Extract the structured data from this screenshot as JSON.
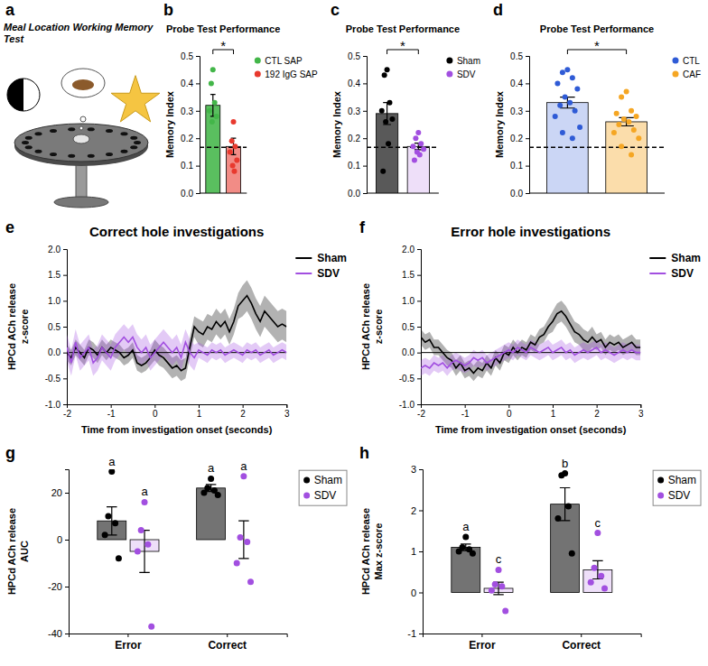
{
  "chart_data": [
    {
      "type": "illustration",
      "panel": "a",
      "title": "Meal Location Working Memory Test"
    },
    {
      "type": "bar",
      "panel": "b",
      "title": "Probe Test Performance",
      "y_label": "Memory Index",
      "ylim": [
        0,
        0.5
      ],
      "yticks": [
        {
          "value": 0,
          "label": "0.0"
        },
        0.1,
        0.2,
        0.3,
        0.4,
        0.5
      ],
      "reference_line": 0.167,
      "annotation": "*",
      "legend": "right",
      "series": [
        {
          "name": "CTL SAP",
          "color": "#43b649",
          "values": [
            0.32
          ],
          "error": [
            0.04
          ],
          "points": [
            0.45,
            0.4,
            0.33,
            0.3,
            0.28,
            0.26
          ]
        },
        {
          "name": "192 IgG SAP",
          "color": "#e8392e",
          "values": [
            0.17
          ],
          "error": [
            0.03
          ],
          "points": [
            0.26,
            0.19,
            0.17,
            0.15,
            0.12,
            0.1,
            0.08
          ]
        }
      ]
    },
    {
      "type": "bar",
      "panel": "c",
      "title": "Probe Test Performance",
      "y_label": "Memory Index",
      "ylim": [
        0,
        0.5
      ],
      "yticks": [
        {
          "value": 0,
          "label": "0.0"
        },
        0.1,
        0.2,
        0.3,
        0.4,
        0.5
      ],
      "reference_line": 0.167,
      "annotation": "*",
      "legend": "right",
      "series": [
        {
          "name": "Sham",
          "color": "#000000",
          "values": [
            0.29
          ],
          "error": [
            0.04
          ],
          "points": [
            0.45,
            0.43,
            0.33,
            0.3,
            0.27,
            0.26,
            0.18,
            0.08
          ]
        },
        {
          "name": "SDV",
          "color": "#a24fe0",
          "values": [
            0.17
          ],
          "error": [
            0.012
          ],
          "points": [
            0.22,
            0.2,
            0.18,
            0.17,
            0.16,
            0.15,
            0.14,
            0.12
          ]
        }
      ]
    },
    {
      "type": "bar",
      "panel": "d",
      "title": "Probe Test Performance",
      "y_label": "Memory Index",
      "ylim": [
        0,
        0.5
      ],
      "yticks": [
        {
          "value": 0,
          "label": "0.0"
        },
        0.1,
        0.2,
        0.3,
        0.4,
        0.5
      ],
      "reference_line": 0.167,
      "annotation": "*",
      "legend": "right",
      "series": [
        {
          "name": "CTL",
          "color": "#2f5bd6",
          "values": [
            0.33
          ],
          "error": [
            0.02
          ],
          "points": [
            0.45,
            0.44,
            0.42,
            0.4,
            0.38,
            0.35,
            0.33,
            0.32,
            0.3,
            0.28,
            0.24,
            0.22,
            0.2
          ]
        },
        {
          "name": "CAF",
          "color": "#f5a623",
          "values": [
            0.26
          ],
          "error": [
            0.015
          ],
          "points": [
            0.37,
            0.35,
            0.3,
            0.29,
            0.28,
            0.27,
            0.26,
            0.25,
            0.23,
            0.22,
            0.2,
            0.17,
            0.14
          ]
        }
      ]
    },
    {
      "type": "line",
      "panel": "e",
      "title": "Correct hole investigations",
      "y_label": [
        "HPCd ACh release",
        "z-score"
      ],
      "x_label": "Time from investigation onset (seconds)",
      "xlim": [
        -2,
        3
      ],
      "xticks": [
        -2,
        -1,
        0,
        1,
        2,
        3
      ],
      "ylim": [
        -1,
        2
      ],
      "yticks": [
        {
          "value": -1,
          "label": "-1.0"
        },
        -0.5,
        {
          "value": 0,
          "label": "0.0"
        },
        0.5,
        {
          "value": 1,
          "label": "1.0"
        },
        1.5,
        {
          "value": 2,
          "label": "2.0"
        }
      ],
      "reference_line": 0,
      "legend": "right",
      "x": [
        -2,
        -1.9,
        -1.8,
        -1.7,
        -1.6,
        -1.5,
        -1.4,
        -1.3,
        -1.2,
        -1.1,
        -1,
        -0.9,
        -0.8,
        -0.7,
        -0.6,
        -0.5,
        -0.4,
        -0.3,
        -0.2,
        -0.1,
        0,
        0.1,
        0.2,
        0.3,
        0.4,
        0.5,
        0.6,
        0.7,
        0.8,
        0.9,
        1,
        1.1,
        1.2,
        1.3,
        1.4,
        1.5,
        1.6,
        1.7,
        1.8,
        1.9,
        2,
        2.1,
        2.2,
        2.3,
        2.4,
        2.5,
        2.6,
        2.7,
        2.8,
        2.9,
        3
      ],
      "series": [
        {
          "name": "Sham",
          "color": "#000000",
          "values": [
            0,
            -0.1,
            0.1,
            0,
            -0.1,
            0.1,
            0.05,
            -0.05,
            0.1,
            0,
            0.1,
            0.05,
            0,
            -0.1,
            -0.05,
            0.05,
            -0.2,
            -0.25,
            -0.2,
            -0.1,
            0.05,
            -0.05,
            -0.1,
            -0.2,
            -0.3,
            -0.25,
            -0.35,
            -0.3,
            0.1,
            0.5,
            0.4,
            0.35,
            0.5,
            0.45,
            0.6,
            0.5,
            0.6,
            0.4,
            0.6,
            0.9,
            1,
            1.1,
            0.95,
            0.75,
            0.6,
            0.8,
            0.7,
            0.6,
            0.5,
            0.55,
            0.5
          ],
          "sem": [
            0.15,
            0.15,
            0.15,
            0.15,
            0.15,
            0.15,
            0.15,
            0.15,
            0.15,
            0.15,
            0.15,
            0.15,
            0.15,
            0.15,
            0.15,
            0.15,
            0.15,
            0.15,
            0.15,
            0.15,
            0.2,
            0.2,
            0.2,
            0.2,
            0.2,
            0.2,
            0.2,
            0.2,
            0.2,
            0.2,
            0.25,
            0.25,
            0.25,
            0.25,
            0.25,
            0.25,
            0.25,
            0.25,
            0.25,
            0.25,
            0.3,
            0.3,
            0.3,
            0.3,
            0.3,
            0.3,
            0.3,
            0.3,
            0.3,
            0.3,
            0.3
          ]
        },
        {
          "name": "SDV",
          "color": "#a24fe0",
          "values": [
            0.1,
            -0.2,
            0.2,
            -0.1,
            0,
            0.1,
            -0.2,
            -0.1,
            0.1,
            0,
            -0.1,
            0.1,
            0.2,
            0.3,
            0.2,
            0.3,
            0.1,
            0,
            0.1,
            -0.1,
            0,
            0.1,
            0.2,
            0.1,
            0,
            0.1,
            -0.1,
            0.2,
            0,
            -0.1,
            0.05,
            0,
            -0.05,
            0.05,
            0,
            0.05,
            -0.05,
            0,
            0.05,
            0,
            -0.05,
            0.05,
            0,
            0.05,
            -0.05,
            0,
            0.05,
            -0.05,
            0,
            0.05,
            0
          ],
          "sem": [
            0.25,
            0.25,
            0.25,
            0.25,
            0.25,
            0.25,
            0.25,
            0.25,
            0.25,
            0.25,
            0.25,
            0.25,
            0.25,
            0.25,
            0.25,
            0.25,
            0.25,
            0.25,
            0.25,
            0.25,
            0.25,
            0.25,
            0.25,
            0.25,
            0.25,
            0.25,
            0.25,
            0.25,
            0.25,
            0.25,
            0.15,
            0.15,
            0.15,
            0.15,
            0.15,
            0.15,
            0.15,
            0.15,
            0.15,
            0.15,
            0.15,
            0.15,
            0.15,
            0.15,
            0.15,
            0.15,
            0.15,
            0.15,
            0.15,
            0.15,
            0.15
          ]
        }
      ]
    },
    {
      "type": "line",
      "panel": "f",
      "title": "Error hole investigations",
      "y_label": [
        "HPCd ACh release",
        "z-score"
      ],
      "x_label": "Time from investigation onset (seconds)",
      "xlim": [
        -2,
        3
      ],
      "xticks": [
        -2,
        -1,
        0,
        1,
        2,
        3
      ],
      "ylim": [
        -1,
        2
      ],
      "yticks": [
        {
          "value": -1,
          "label": "-1.0"
        },
        -0.5,
        {
          "value": 0,
          "label": "0.0"
        },
        0.5,
        {
          "value": 1,
          "label": "1.0"
        },
        1.5,
        {
          "value": 2,
          "label": "2.0"
        }
      ],
      "reference_line": 0,
      "legend": "right",
      "x": [
        -2,
        -1.9,
        -1.8,
        -1.7,
        -1.6,
        -1.5,
        -1.4,
        -1.3,
        -1.2,
        -1.1,
        -1,
        -0.9,
        -0.8,
        -0.7,
        -0.6,
        -0.5,
        -0.4,
        -0.3,
        -0.2,
        -0.1,
        0,
        0.1,
        0.2,
        0.3,
        0.4,
        0.5,
        0.6,
        0.7,
        0.8,
        0.9,
        1,
        1.1,
        1.2,
        1.3,
        1.4,
        1.5,
        1.6,
        1.7,
        1.8,
        1.9,
        2,
        2.1,
        2.2,
        2.3,
        2.4,
        2.5,
        2.6,
        2.7,
        2.8,
        2.9,
        3
      ],
      "series": [
        {
          "name": "Sham",
          "color": "#000000",
          "values": [
            0.3,
            0.2,
            0.25,
            0.1,
            0.1,
            0,
            -0.1,
            -0.15,
            -0.3,
            -0.2,
            -0.35,
            -0.3,
            -0.4,
            -0.3,
            -0.35,
            -0.2,
            -0.3,
            -0.1,
            -0.2,
            0,
            -0.05,
            0.1,
            0,
            0.1,
            0.05,
            0.2,
            0.15,
            0.3,
            0.35,
            0.5,
            0.6,
            0.75,
            0.8,
            0.7,
            0.55,
            0.4,
            0.35,
            0.25,
            0.2,
            0.3,
            0.2,
            0.25,
            0.1,
            0.2,
            0.15,
            0.2,
            0.1,
            0.15,
            0.2,
            0.1,
            0.1
          ],
          "sem": [
            0.15,
            0.15,
            0.15,
            0.15,
            0.15,
            0.15,
            0.15,
            0.15,
            0.15,
            0.15,
            0.15,
            0.15,
            0.15,
            0.15,
            0.15,
            0.15,
            0.15,
            0.15,
            0.15,
            0.15,
            0.15,
            0.15,
            0.15,
            0.15,
            0.15,
            0.15,
            0.15,
            0.15,
            0.15,
            0.15,
            0.2,
            0.2,
            0.2,
            0.2,
            0.2,
            0.2,
            0.2,
            0.2,
            0.2,
            0.2,
            0.15,
            0.15,
            0.15,
            0.15,
            0.15,
            0.15,
            0.15,
            0.15,
            0.15,
            0.15,
            0.15
          ]
        },
        {
          "name": "SDV",
          "color": "#a24fe0",
          "values": [
            -0.3,
            -0.25,
            -0.3,
            -0.2,
            -0.25,
            -0.2,
            -0.3,
            -0.2,
            -0.15,
            -0.2,
            -0.25,
            -0.2,
            -0.1,
            -0.15,
            -0.1,
            -0.2,
            -0.15,
            -0.1,
            -0.05,
            0,
            0.05,
            0,
            0.1,
            0.05,
            0,
            0.1,
            0.05,
            0,
            0.05,
            0.1,
            0,
            0.05,
            0.1,
            0,
            0.05,
            -0.05,
            0,
            0.05,
            0,
            0.05,
            0.1,
            0,
            0.05,
            0,
            -0.05,
            0,
            0.05,
            0,
            0.05,
            0,
            0
          ],
          "sem": [
            0.15,
            0.15,
            0.15,
            0.15,
            0.15,
            0.15,
            0.15,
            0.15,
            0.15,
            0.15,
            0.15,
            0.15,
            0.15,
            0.15,
            0.15,
            0.15,
            0.15,
            0.15,
            0.15,
            0.15,
            0.15,
            0.15,
            0.15,
            0.15,
            0.15,
            0.15,
            0.15,
            0.15,
            0.15,
            0.15,
            0.15,
            0.15,
            0.15,
            0.15,
            0.15,
            0.15,
            0.15,
            0.15,
            0.15,
            0.15,
            0.15,
            0.15,
            0.15,
            0.15,
            0.15,
            0.15,
            0.15,
            0.15,
            0.15,
            0.15,
            0.15
          ]
        }
      ]
    },
    {
      "type": "bar",
      "panel": "g",
      "y_label": [
        "HPCd ACh release",
        "AUC"
      ],
      "categories": [
        "Error",
        "Correct"
      ],
      "ylim": [
        -40,
        30
      ],
      "yticks": [
        -40,
        -20,
        0,
        20
      ],
      "legend": "right",
      "series": [
        {
          "name": "Sham",
          "color": "#000000",
          "values": [
            8,
            22
          ],
          "error": [
            6,
            1.5
          ],
          "points": [
            [
              29,
              10,
              7,
              2,
              -8
            ],
            [
              26,
              22,
              21,
              20,
              19
            ]
          ],
          "annotations": [
            "a",
            "a"
          ]
        },
        {
          "name": "SDV",
          "color": "#a24fe0",
          "values": [
            -5,
            0
          ],
          "error": [
            9,
            8
          ],
          "points": [
            [
              16,
              4,
              -2,
              -5,
              -37
            ],
            [
              27,
              1,
              -1,
              -10,
              -18
            ]
          ],
          "annotations": [
            "a",
            "a"
          ]
        }
      ]
    },
    {
      "type": "bar",
      "panel": "h",
      "y_label": [
        "HPCd ACh release",
        "Max z-score"
      ],
      "categories": [
        "Error",
        "Correct"
      ],
      "ylim": [
        -1,
        3
      ],
      "yticks": [
        -1,
        0,
        1,
        2,
        3
      ],
      "legend": "right",
      "series": [
        {
          "name": "Sham",
          "color": "#000000",
          "values": [
            1.1,
            2.15
          ],
          "error": [
            0.08,
            0.4
          ],
          "points": [
            [
              1.35,
              1.1,
              1.05,
              1.0,
              0.95
            ],
            [
              2.9,
              2.85,
              2.1,
              1.8,
              0.95
            ]
          ],
          "annotations": [
            "a",
            "b"
          ]
        },
        {
          "name": "SDV",
          "color": "#a24fe0",
          "values": [
            0.1,
            0.55
          ],
          "error": [
            0.15,
            0.22
          ],
          "points": [
            [
              0.55,
              0.2,
              0.15,
              0.05,
              -0.45
            ],
            [
              1.45,
              0.6,
              0.4,
              0.25,
              0.1
            ]
          ],
          "annotations": [
            "c",
            "c"
          ]
        }
      ]
    }
  ]
}
